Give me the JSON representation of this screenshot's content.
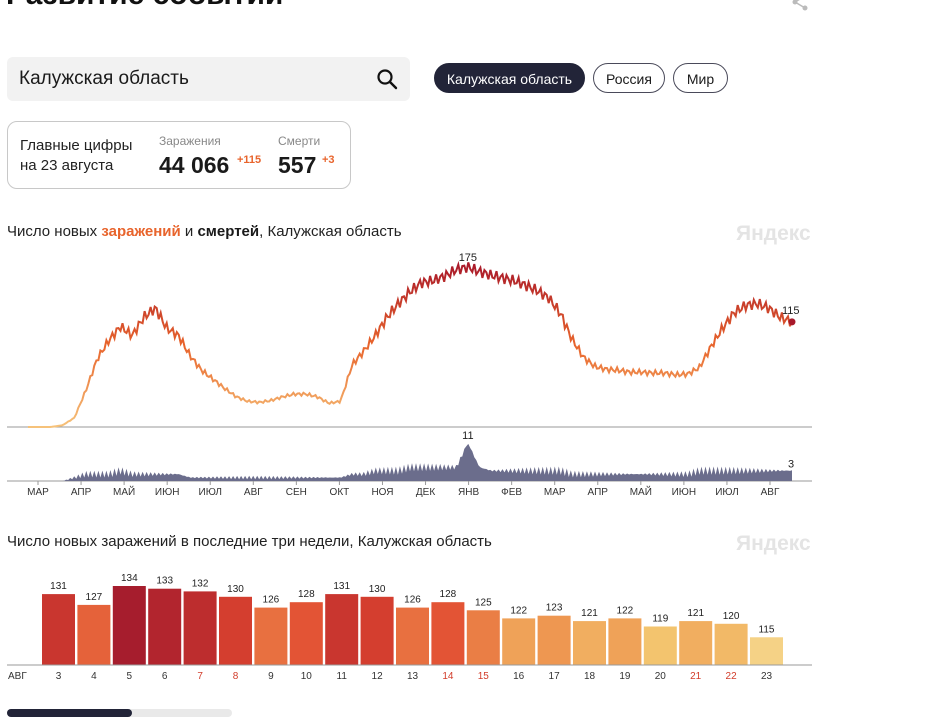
{
  "page": {
    "title": "Развитие событий"
  },
  "search": {
    "value": "Калужская область"
  },
  "regions": [
    {
      "label": "Калужская область",
      "active": true
    },
    {
      "label": "Россия",
      "active": false
    },
    {
      "label": "Мир",
      "active": false
    }
  ],
  "stats": {
    "date_line1": "Главные цифры",
    "date_line2": "на 23 августа",
    "infections": {
      "label": "Заражения",
      "value": "44 066",
      "delta": "+115"
    },
    "deaths": {
      "label": "Смерти",
      "value": "557",
      "delta": "+3"
    }
  },
  "watermark": "Яндекс",
  "chart1": {
    "title_prefix": "Число новых ",
    "title_infections": "заражений",
    "title_and": " и ",
    "title_deaths": "смертей",
    "title_suffix": ", Калужская область"
  },
  "chart2": {
    "title": "Число новых заражений в последние три недели, Калужская область"
  },
  "colors": {
    "accent": "#e8642c",
    "dark": "#222438",
    "deaths": "#6b6d8c"
  },
  "chart_data": [
    {
      "type": "line",
      "title": "Число новых заражений и смертей, Калужская область",
      "months": [
        "МАР",
        "АПР",
        "МАЙ",
        "ИЮН",
        "ИЮЛ",
        "АВГ",
        "СЕН",
        "ОКТ",
        "НОЯ",
        "ДЕК",
        "ЯНВ",
        "ФЕВ",
        "МАР",
        "АПР",
        "МАЙ",
        "ИЮН",
        "ИЮЛ",
        "АВГ"
      ],
      "infections": {
        "name": "Заражения",
        "values": [
          0,
          0,
          0,
          2,
          10,
          40,
          75,
          95,
          110,
          100,
          120,
          130,
          108,
          100,
          78,
          62,
          52,
          42,
          33,
          28,
          27,
          29,
          33,
          36,
          36,
          33,
          26,
          28,
          68,
          83,
          100,
          120,
          135,
          148,
          158,
          160,
          165,
          172,
          175,
          170,
          166,
          163,
          160,
          155,
          149,
          141,
          124,
          96,
          76,
          66,
          63,
          62,
          60,
          60,
          59,
          59,
          57,
          58,
          65,
          88,
          108,
          125,
          133,
          135,
          130,
          120,
          115
        ],
        "annotations": [
          {
            "label": "175",
            "value": 175
          },
          {
            "label": "115",
            "value": 115
          }
        ]
      },
      "deaths": {
        "name": "Смерти",
        "values": [
          0,
          0,
          0,
          0,
          1,
          2,
          2,
          2,
          3,
          2,
          2,
          2,
          2,
          2,
          1,
          1,
          1,
          1,
          1,
          1,
          1,
          1,
          1,
          1,
          1,
          1,
          1,
          1,
          2,
          2,
          3,
          3,
          3,
          4,
          4,
          4,
          4,
          4,
          11,
          4,
          3,
          3,
          3,
          3,
          3,
          3,
          3,
          2,
          2,
          2,
          2,
          2,
          2,
          2,
          2,
          2,
          2,
          2,
          3,
          3,
          3,
          3,
          3,
          3,
          3,
          3,
          3
        ],
        "annotations": [
          {
            "label": "11",
            "value": 11
          },
          {
            "label": "3",
            "value": 3
          }
        ]
      }
    },
    {
      "type": "bar",
      "title": "Число новых заражений в последние три недели, Калужская область",
      "month_label": "АВГ",
      "categories": [
        "3",
        "4",
        "5",
        "6",
        "7",
        "8",
        "9",
        "10",
        "11",
        "12",
        "13",
        "14",
        "15",
        "16",
        "17",
        "18",
        "19",
        "20",
        "21",
        "22",
        "23"
      ],
      "weekend": [
        false,
        false,
        false,
        false,
        true,
        true,
        false,
        false,
        false,
        false,
        false,
        true,
        true,
        false,
        false,
        false,
        false,
        false,
        true,
        true,
        false
      ],
      "values": [
        131,
        127,
        134,
        133,
        132,
        130,
        126,
        128,
        131,
        130,
        126,
        128,
        125,
        122,
        123,
        121,
        122,
        119,
        121,
        120,
        115
      ],
      "ylim": [
        0,
        140
      ]
    }
  ]
}
